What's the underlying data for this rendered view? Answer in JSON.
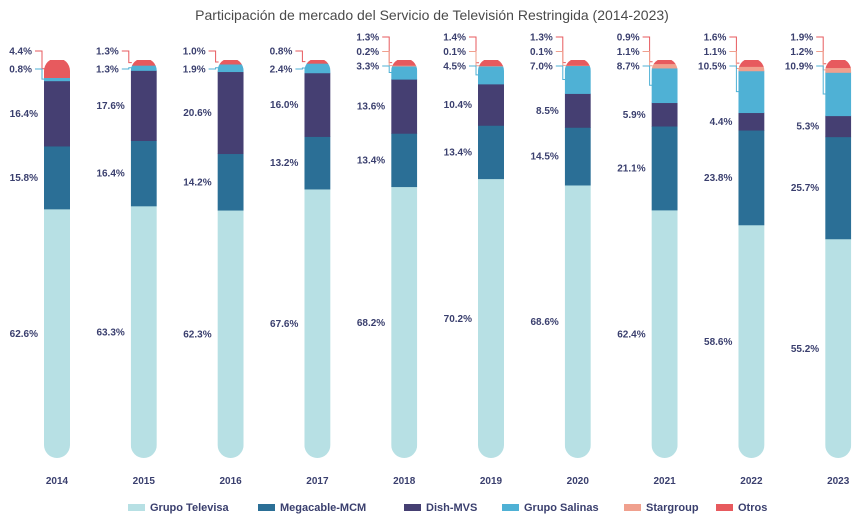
{
  "chart_data": {
    "type": "bar",
    "stacked": true,
    "title": "Participación de mercado del Servicio de Televisión Restringida (2014-2023)",
    "categories": [
      "2014",
      "2015",
      "2016",
      "2017",
      "2018",
      "2019",
      "2020",
      "2021",
      "2022",
      "2023"
    ],
    "series": [
      {
        "name": "Grupo Televisa",
        "color": "#b7e0e4",
        "values": [
          62.6,
          63.3,
          62.3,
          67.6,
          68.2,
          70.2,
          68.6,
          62.4,
          58.6,
          55.2
        ],
        "labels": [
          "62.6%",
          "63.3%",
          "62.3%",
          "67.6%",
          "68.2%",
          "70.2%",
          "68.6%",
          "62.4%",
          "58.6%",
          "55.2%"
        ]
      },
      {
        "name": "Megacable-MCM",
        "color": "#2b6f96",
        "values": [
          15.8,
          16.4,
          14.2,
          13.2,
          13.4,
          13.4,
          14.5,
          21.1,
          23.8,
          25.7
        ],
        "labels": [
          "15.8%",
          "16.4%",
          "14.2%",
          "13.2%",
          "13.4%",
          "13.4%",
          "14.5%",
          "21.1%",
          "23.8%",
          "25.7%"
        ]
      },
      {
        "name": "Dish-MVS",
        "color": "#453f72",
        "values": [
          16.4,
          17.6,
          20.6,
          16.0,
          13.6,
          10.4,
          8.5,
          5.9,
          4.4,
          5.3
        ],
        "labels": [
          "16.4%",
          "17.6%",
          "20.6%",
          "16.0%",
          "13.6%",
          "10.4%",
          "8.5%",
          "5.9%",
          "4.4%",
          "5.3%"
        ]
      },
      {
        "name": "Grupo Salinas",
        "color": "#4fb1d5",
        "values": [
          0.8,
          1.3,
          1.9,
          2.4,
          3.3,
          4.5,
          7.0,
          8.7,
          10.5,
          10.9
        ],
        "labels": [
          "0.8%",
          "1.3%",
          "1.9%",
          "2.4%",
          "3.3%",
          "4.5%",
          "7.0%",
          "8.7%",
          "10.5%",
          "10.9%"
        ]
      },
      {
        "name": "Stargroup",
        "color": "#f0a08e",
        "values": [
          0,
          0,
          0,
          0,
          0.2,
          0.1,
          0.1,
          1.1,
          1.1,
          1.2
        ],
        "labels": [
          "",
          "",
          "",
          "",
          "0.2%",
          "0.1%",
          "0.1%",
          "1.1%",
          "1.1%",
          "1.2%"
        ]
      },
      {
        "name": "Otros",
        "color": "#e75a5e",
        "values": [
          4.4,
          1.3,
          1.0,
          0.8,
          1.3,
          1.4,
          1.3,
          0.9,
          1.6,
          1.9
        ],
        "labels": [
          "4.4%",
          "1.3%",
          "1.0%",
          "0.8%",
          "1.3%",
          "1.4%",
          "1.3%",
          "0.9%",
          "1.6%",
          "1.9%"
        ]
      }
    ],
    "ylim": [
      0,
      100
    ],
    "grid": false,
    "legend_position": "bottom"
  }
}
